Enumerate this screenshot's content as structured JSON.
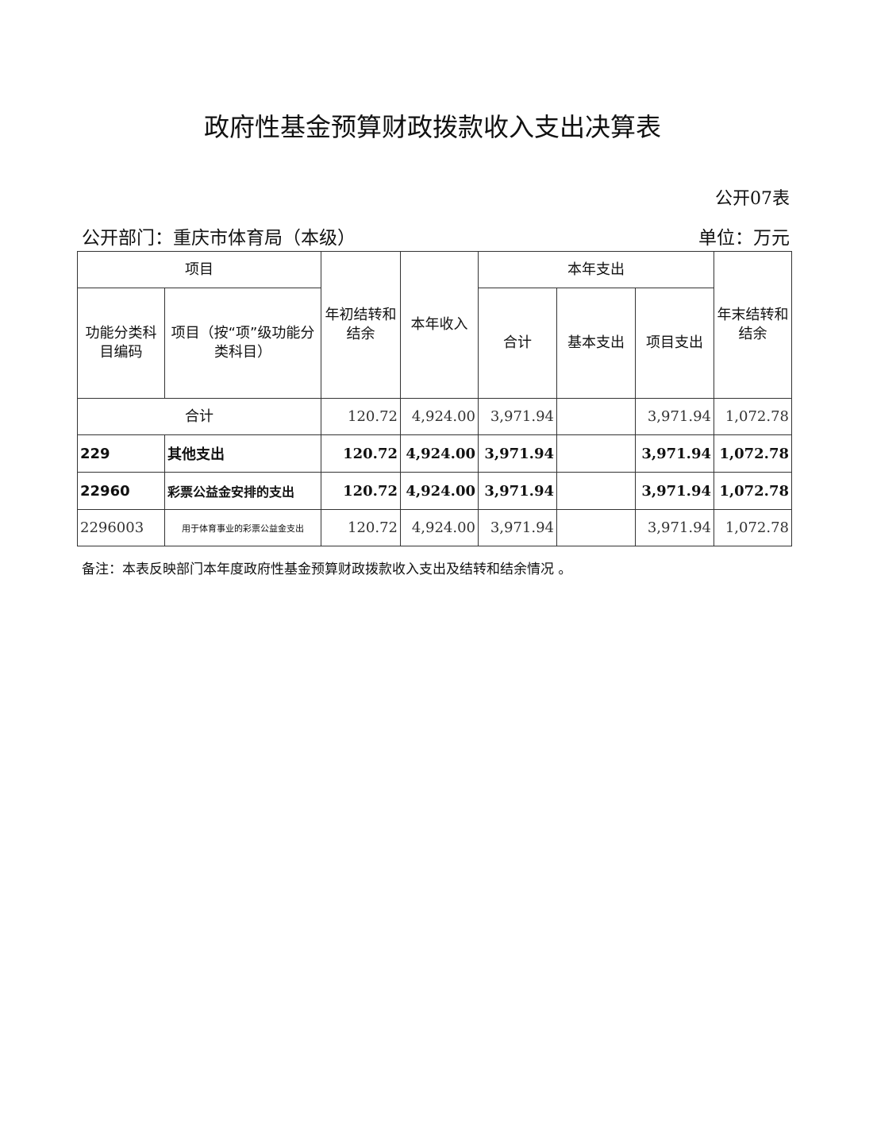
{
  "title": "政府性基金预算财政拨款收入支出决算表",
  "table_no": "公开07表",
  "department": "公开部门：重庆市体育局（本级）",
  "unit": "单位：万元",
  "headers": {
    "item": "项目",
    "code": "功能分类科目编码",
    "name": "项目（按“项”级功能分类科目）",
    "begin_balance": "年初结转和结余",
    "income": "本年收入",
    "expense": "本年支出",
    "expense_total": "合计",
    "basic": "基本支出",
    "project": "项目支出",
    "end_balance": "年末结转和结余"
  },
  "total_row": {
    "label": "合计",
    "begin": "120.72",
    "income": "4,924.00",
    "total": "3,971.94",
    "basic": "",
    "project": "3,971.94",
    "end": "1,072.78"
  },
  "rows": [
    {
      "code": "229",
      "name": "其他支出",
      "begin": "120.72",
      "income": "4,924.00",
      "total": "3,971.94",
      "basic": "",
      "project": "3,971.94",
      "end": "1,072.78"
    },
    {
      "code": "22960",
      "name": "彩票公益金安排的支出",
      "begin": "120.72",
      "income": "4,924.00",
      "total": "3,971.94",
      "basic": "",
      "project": "3,971.94",
      "end": "1,072.78"
    },
    {
      "code": "2296003",
      "name": "用于体育事业的彩票公益金支出",
      "begin": "120.72",
      "income": "4,924.00",
      "total": "3,971.94",
      "basic": "",
      "project": "3,971.94",
      "end": "1,072.78"
    }
  ],
  "note": "备注：本表反映部门本年度政府性基金预算财政拨款收入支出及结转和结余情况  。"
}
